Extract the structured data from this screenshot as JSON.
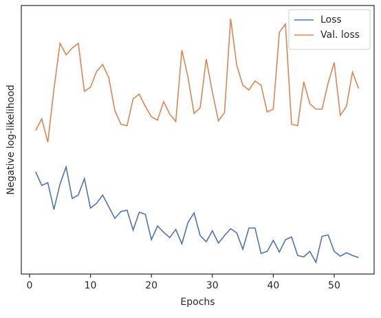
{
  "chart_data": {
    "type": "line",
    "xlabel": "Epochs",
    "ylabel": "Negative log-likelihood",
    "x": [
      1,
      2,
      3,
      4,
      5,
      6,
      7,
      8,
      9,
      10,
      11,
      12,
      13,
      14,
      15,
      16,
      17,
      18,
      19,
      20,
      21,
      22,
      23,
      24,
      25,
      26,
      27,
      28,
      29,
      30,
      31,
      32,
      33,
      34,
      35,
      36,
      37,
      38,
      39,
      40,
      41,
      42,
      43,
      44,
      45,
      46,
      47,
      48,
      49,
      50,
      51,
      52,
      53,
      54
    ],
    "series": [
      {
        "name": "Loss",
        "color": "#4c72b0",
        "values": [
          149,
          129,
          133,
          94,
          131,
          156,
          110,
          115,
          139,
          96,
          103,
          115,
          98,
          81,
          91,
          93,
          64,
          90,
          87,
          50,
          70,
          61,
          53,
          65,
          44,
          75,
          89,
          56,
          47,
          63,
          45,
          56,
          66,
          60,
          36,
          67,
          67,
          30,
          33,
          49,
          32,
          50,
          54,
          27,
          25,
          33,
          17,
          55,
          57,
          33,
          26,
          31,
          27,
          24
        ]
      },
      {
        "name": "Val. loss",
        "color": "#dd8452",
        "values": [
          209,
          226,
          192,
          269,
          336,
          319,
          329,
          336,
          266,
          272,
          295,
          305,
          286,
          238,
          218,
          216,
          255,
          262,
          244,
          229,
          224,
          251,
          233,
          222,
          326,
          287,
          234,
          242,
          313,
          265,
          223,
          235,
          372,
          304,
          275,
          268,
          281,
          275,
          236,
          240,
          352,
          364,
          218,
          216,
          280,
          248,
          240,
          240,
          278,
          308,
          231,
          244,
          294,
          270
        ]
      }
    ],
    "xlim": [
      -1.35,
      56.55
    ],
    "ylim": [
      0,
      391
    ],
    "xticks": [
      0,
      10,
      20,
      30,
      40,
      50
    ],
    "legend": "upper right"
  }
}
